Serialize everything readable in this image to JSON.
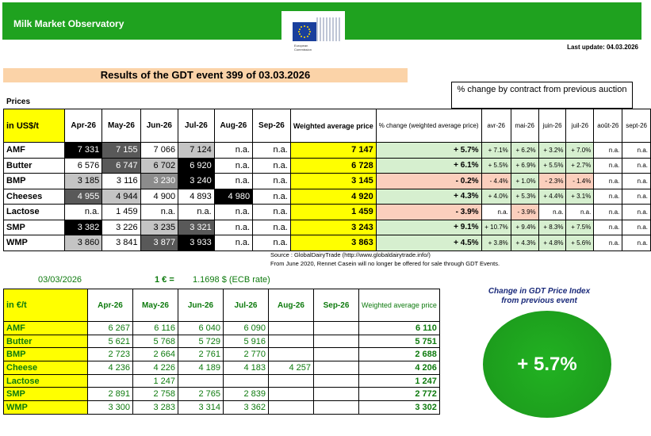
{
  "header": {
    "title": "Milk Market Observatory",
    "logo_caption_1": "European",
    "logo_caption_2": "Commission",
    "last_update": "Last update: 04.03.2026",
    "event_title": "Results of the GDT event 399 of 03.03.2026",
    "prices_label": "Prices",
    "pct_header": "% change by contract from previous auction"
  },
  "usd_table": {
    "unit_label": "in US$/t",
    "months": [
      "Apr-26",
      "May-26",
      "Jun-26",
      "Jul-26",
      "Aug-26",
      "Sep-26"
    ],
    "weighted_label": "Weighted average price",
    "pct_label": "% change (weighted average price)",
    "contract_months": [
      "avr-26",
      "mai-26",
      "juin-26",
      "juil-26",
      "août-26",
      "sept-26"
    ],
    "rows": [
      {
        "product": "AMF",
        "values": [
          "7 331",
          "7 155",
          "7 066",
          "7 124",
          "n.a.",
          "n.a."
        ],
        "weighted": "7 147",
        "pct": "+ 5.7%",
        "contract": [
          "+ 7.1%",
          "+ 6.2%",
          "+ 3.2%",
          "+ 7.0%",
          "n.a.",
          "n.a."
        ]
      },
      {
        "product": "Butter",
        "values": [
          "6 576",
          "6 747",
          "6 702",
          "6 920",
          "n.a.",
          "n.a."
        ],
        "weighted": "6 728",
        "pct": "+ 6.1%",
        "contract": [
          "+ 5.5%",
          "+ 6.9%",
          "+ 5.5%",
          "+ 2.7%",
          "n.a.",
          "n.a."
        ]
      },
      {
        "product": "BMP",
        "values": [
          "3 185",
          "3 116",
          "3 230",
          "3 240",
          "n.a.",
          "n.a."
        ],
        "weighted": "3 145",
        "pct": "- 0.2%",
        "contract": [
          "- 4.4%",
          "+ 1.0%",
          "- 2.3%",
          "- 1.4%",
          "n.a.",
          "n.a."
        ]
      },
      {
        "product": "Cheeses",
        "values": [
          "4 955",
          "4 944",
          "4 900",
          "4 893",
          "4 980",
          "n.a."
        ],
        "weighted": "4 920",
        "pct": "+ 4.3%",
        "contract": [
          "+ 4.0%",
          "+ 5.3%",
          "+ 4.4%",
          "+ 3.1%",
          "n.a.",
          "n.a."
        ]
      },
      {
        "product": "Lactose",
        "values": [
          "n.a.",
          "1 459",
          "n.a.",
          "n.a.",
          "n.a.",
          "n.a."
        ],
        "weighted": "1 459",
        "pct": "- 3.9%",
        "contract": [
          "n.a.",
          "- 3.9%",
          "n.a.",
          "n.a.",
          "n.a.",
          "n.a."
        ]
      },
      {
        "product": "SMP",
        "values": [
          "3 382",
          "3 226",
          "3 235",
          "3 321",
          "n.a.",
          "n.a."
        ],
        "weighted": "3 243",
        "pct": "+ 9.1%",
        "contract": [
          "+ 10.7%",
          "+ 9.4%",
          "+ 8.3%",
          "+ 7.5%",
          "n.a.",
          "n.a."
        ]
      },
      {
        "product": "WMP",
        "values": [
          "3 860",
          "3 841",
          "3 877",
          "3 933",
          "n.a.",
          "n.a."
        ],
        "weighted": "3 863",
        "pct": "+ 4.5%",
        "contract": [
          "+ 3.8%",
          "+ 4.3%",
          "+ 4.8%",
          "+ 5.6%",
          "n.a.",
          "n.a."
        ]
      }
    ]
  },
  "source": {
    "line1": "Source : GlobalDairyTrade (http://www.globaldairytrade.info/)",
    "line2": "From June 2020, Rennet Casein will no longer be offered for sale through GDT Events."
  },
  "rate": {
    "date": "03/03/2026",
    "euro": "1 € =",
    "value": "1.1698 $ (ECB rate)"
  },
  "eur_table": {
    "unit_label": "in €/t",
    "months": [
      "Apr-26",
      "May-26",
      "Jun-26",
      "Jul-26",
      "Aug-26",
      "Sep-26"
    ],
    "weighted_label": "Weighted average price",
    "rows": [
      {
        "product": "AMF",
        "values": [
          "6 267",
          "6 116",
          "6 040",
          "6 090",
          "",
          ""
        ],
        "weighted": "6 110"
      },
      {
        "product": "Butter",
        "values": [
          "5 621",
          "5 768",
          "5 729",
          "5 916",
          "",
          ""
        ],
        "weighted": "5 751"
      },
      {
        "product": "BMP",
        "values": [
          "2 723",
          "2 664",
          "2 761",
          "2 770",
          "",
          ""
        ],
        "weighted": "2 688"
      },
      {
        "product": "Cheese",
        "values": [
          "4 236",
          "4 226",
          "4 189",
          "4 183",
          "4 257",
          ""
        ],
        "weighted": "4 206"
      },
      {
        "product": "Lactose",
        "values": [
          "",
          "1 247",
          "",
          "",
          "",
          ""
        ],
        "weighted": "1 247"
      },
      {
        "product": "SMP",
        "values": [
          "2 891",
          "2 758",
          "2 765",
          "2 839",
          "",
          ""
        ],
        "weighted": "2 772"
      },
      {
        "product": "WMP",
        "values": [
          "3 300",
          "3 283",
          "3 314",
          "3 362",
          "",
          ""
        ],
        "weighted": "3 302"
      }
    ]
  },
  "gdt_index": {
    "title": "Change in GDT Price Index from previous event",
    "value": "+ 5.7%"
  },
  "colors": {
    "banner": "#1fa21f",
    "title_bg": "#fbd3a8",
    "highlight": "#ffff00",
    "positive": "#d6efcf",
    "negative": "#fbcfbd",
    "eur_text": "#0d7a0d",
    "index_circle": "#1c9a1c"
  }
}
